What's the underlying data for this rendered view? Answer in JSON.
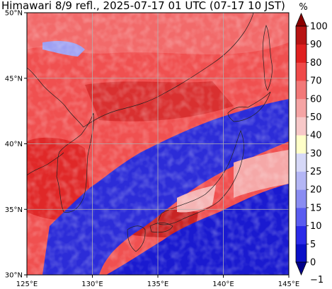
{
  "title": "Himawari 8/9 refl., 2025-07-17 01 UTC (07-17 10 JST)",
  "map": {
    "lon_range": [
      125,
      145
    ],
    "lat_range": [
      30,
      50
    ],
    "grid": true,
    "lon_ticks": [
      {
        "value": 125,
        "label": "125°E"
      },
      {
        "value": 130,
        "label": "130°E"
      },
      {
        "value": 135,
        "label": "135°E"
      },
      {
        "value": 140,
        "label": "140°E"
      },
      {
        "value": 145,
        "label": "145°E"
      }
    ],
    "lat_ticks": [
      {
        "value": 30,
        "label": "30°N"
      },
      {
        "value": 35,
        "label": "35°N"
      },
      {
        "value": 40,
        "label": "40°N"
      },
      {
        "value": 45,
        "label": "45°N"
      },
      {
        "value": 50,
        "label": "50°N"
      }
    ]
  },
  "colorbar": {
    "unit": "%",
    "labels": [
      "−1",
      "0",
      "5",
      "10",
      "15",
      "20",
      "25",
      "30",
      "40",
      "50",
      "60",
      "70",
      "80",
      "90",
      "100"
    ],
    "colors": [
      "#00008a",
      "#0a10c8",
      "#2a2ae8",
      "#5a5cf0",
      "#8a8cf2",
      "#b4b6f5",
      "#d6d8f7",
      "#ffffc8",
      "#f7c8c8",
      "#f5a4a4",
      "#f27878",
      "#f04a4a",
      "#e02020",
      "#b81414",
      "#8a0000"
    ],
    "extend": "both"
  }
}
